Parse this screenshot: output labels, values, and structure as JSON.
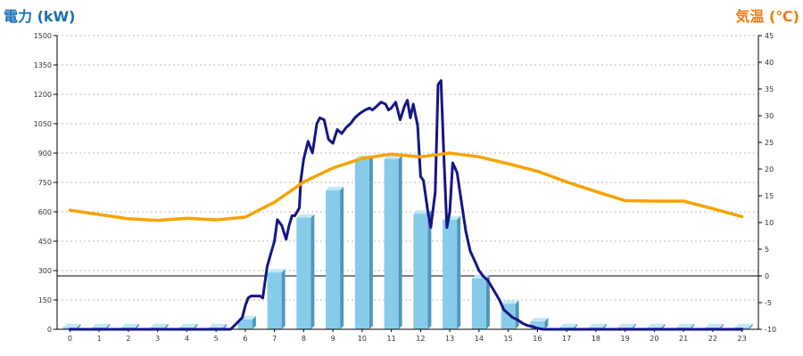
{
  "chart_data": {
    "type": "bar",
    "title_left": "電力 (kW)",
    "title_right": "気温 (℃)",
    "categories": [
      "0",
      "1",
      "2",
      "3",
      "4",
      "5",
      "6",
      "7",
      "8",
      "9",
      "10",
      "11",
      "12",
      "13",
      "14",
      "15",
      "16",
      "17",
      "18",
      "19",
      "20",
      "21",
      "22",
      "23"
    ],
    "y_left": {
      "min": 0,
      "max": 1500,
      "ticks": [
        "0",
        "150",
        "300",
        "450",
        "600",
        "750",
        "900",
        "1050",
        "1200",
        "1350",
        "1500"
      ]
    },
    "y_right": {
      "min": -10,
      "max": 45,
      "ticks": [
        "-10",
        "-5",
        "0",
        "5",
        "10",
        "15",
        "20",
        "25",
        "30",
        "35",
        "40",
        "45"
      ]
    },
    "grid": true,
    "series": [
      {
        "kind": "bar",
        "axis": "left",
        "values": [
          10,
          10,
          10,
          10,
          10,
          10,
          50,
          290,
          570,
          710,
          870,
          870,
          590,
          560,
          260,
          130,
          40,
          10,
          10,
          10,
          10,
          10,
          10,
          10
        ]
      },
      {
        "kind": "line",
        "axis": "left",
        "x": [
          0,
          1,
          2,
          3,
          4,
          5,
          5.5,
          5.7,
          5.9,
          6.0,
          6.1,
          6.2,
          6.4,
          6.5,
          6.6,
          6.75,
          6.9,
          7.0,
          7.1,
          7.25,
          7.4,
          7.5,
          7.6,
          7.7,
          7.85,
          7.9,
          8.0,
          8.15,
          8.3,
          8.45,
          8.55,
          8.7,
          8.85,
          9.0,
          9.15,
          9.3,
          9.45,
          9.6,
          9.75,
          9.9,
          10.0,
          10.1,
          10.25,
          10.35,
          10.5,
          10.65,
          10.8,
          10.9,
          11.0,
          11.15,
          11.3,
          11.45,
          11.55,
          11.65,
          11.75,
          11.9,
          12.0,
          12.1,
          12.25,
          12.35,
          12.5,
          12.6,
          12.7,
          12.8,
          12.9,
          13.0,
          13.1,
          13.25,
          13.4,
          13.55,
          13.7,
          13.85,
          14.0,
          14.15,
          14.3,
          14.5,
          14.7,
          14.85,
          15.0,
          15.15,
          15.3,
          15.5,
          15.65,
          15.8,
          16.0,
          16.2,
          16.5,
          17,
          18,
          19,
          20,
          21,
          22,
          23
        ],
        "values": [
          0,
          0,
          0,
          0,
          0,
          0,
          0,
          30,
          60,
          120,
          160,
          170,
          170,
          170,
          160,
          320,
          400,
          450,
          560,
          530,
          460,
          530,
          580,
          580,
          620,
          760,
          870,
          960,
          900,
          1050,
          1080,
          1070,
          970,
          950,
          1020,
          1000,
          1030,
          1050,
          1080,
          1100,
          1110,
          1120,
          1130,
          1120,
          1140,
          1160,
          1150,
          1120,
          1130,
          1160,
          1070,
          1140,
          1170,
          1080,
          1150,
          1040,
          780,
          760,
          600,
          520,
          700,
          1250,
          1270,
          870,
          520,
          600,
          850,
          800,
          650,
          500,
          400,
          350,
          300,
          270,
          250,
          200,
          150,
          100,
          80,
          60,
          50,
          30,
          20,
          15,
          5,
          0,
          0,
          0,
          0,
          0,
          0,
          0,
          0,
          0
        ]
      },
      {
        "kind": "line",
        "axis": "right",
        "x": [
          0,
          1,
          2,
          3,
          4,
          5,
          6,
          7,
          8,
          9,
          10,
          11,
          12,
          13,
          14,
          15,
          16,
          17,
          18,
          19,
          20,
          21,
          22,
          23
        ],
        "values": [
          12.3,
          11.5,
          10.7,
          10.4,
          10.8,
          10.5,
          11.0,
          13.8,
          17.6,
          20.2,
          22.0,
          22.8,
          22.3,
          23.0,
          22.3,
          21.0,
          19.6,
          17.6,
          15.8,
          14.1,
          14.0,
          14.0,
          12.6,
          11.1
        ]
      }
    ],
    "colors": {
      "bar_front": "#86ccea",
      "bar_side": "#4f97bb",
      "bar_top": "#c4e7f6",
      "power_line": "#151585",
      "temp_line": "#f5a300",
      "title_left": "#1a6fb5",
      "title_right": "#ee7a10"
    }
  }
}
